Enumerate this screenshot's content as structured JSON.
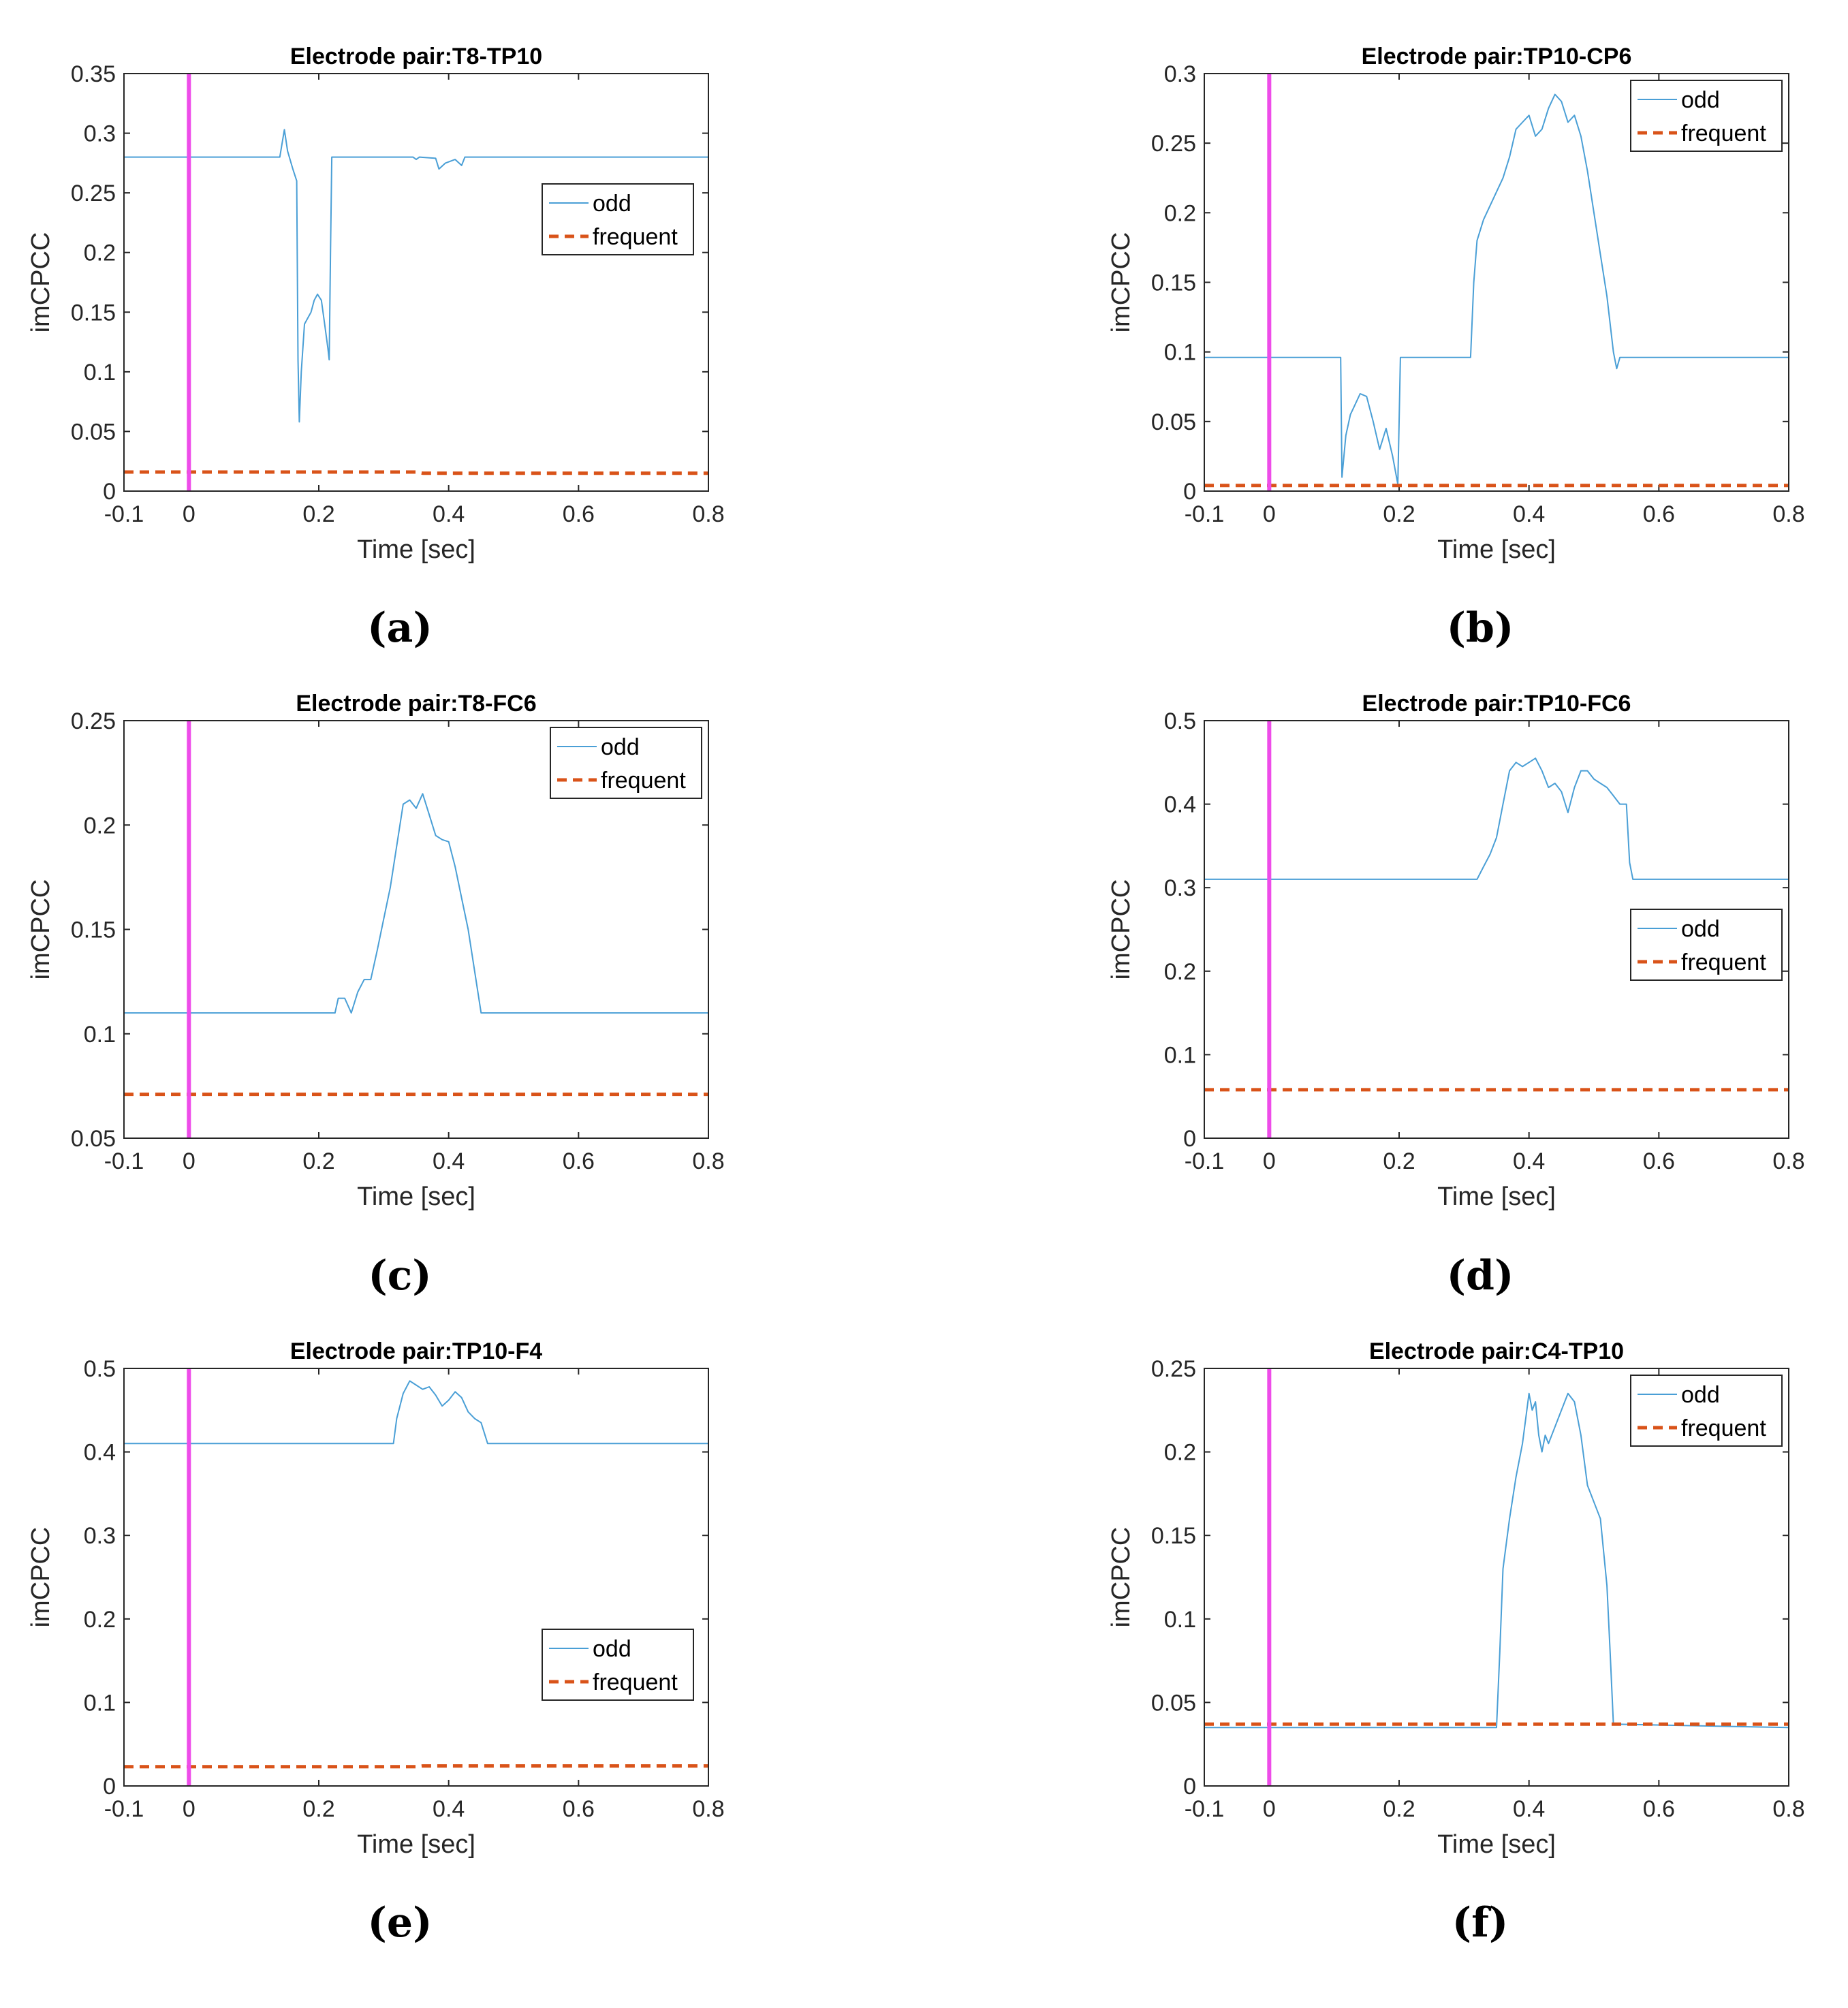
{
  "figure": {
    "colors": {
      "odd": "#4a9fd6",
      "frequent": "#d95319",
      "stimulus": "#ee4ce9",
      "axis": "#262626",
      "grid": "#000000"
    }
  },
  "chart_data": [
    {
      "id": "a",
      "type": "line",
      "title": "Electrode pair:T8-TP10",
      "caption": "(a)",
      "xlabel": "Time [sec]",
      "ylabel": "imCPCC",
      "xlim": [
        -0.1,
        0.8
      ],
      "ylim": [
        0,
        0.35
      ],
      "xticks": [
        -0.1,
        0,
        0.2,
        0.4,
        0.6,
        0.8
      ],
      "xtick_labels": [
        "-0.1",
        "0",
        "0.2",
        "0.4",
        "0.6",
        "0.8"
      ],
      "yticks": [
        0,
        0.05,
        0.1,
        0.15,
        0.2,
        0.25,
        0.3,
        0.35
      ],
      "ytick_labels": [
        "0",
        "0.05",
        "0.1",
        "0.15",
        "0.2",
        "0.25",
        "0.3",
        "0.35"
      ],
      "legend": {
        "entries": [
          "odd",
          "frequent"
        ],
        "placement": "middle-right"
      },
      "stimulus_x": 0,
      "series": [
        {
          "name": "odd",
          "style": "solid",
          "x": [
            -0.1,
            0.14,
            0.143,
            0.147,
            0.152,
            0.16,
            0.166,
            0.168,
            0.17,
            0.173,
            0.178,
            0.183,
            0.188,
            0.193,
            0.198,
            0.204,
            0.209,
            0.214,
            0.216,
            0.218,
            0.22,
            0.3,
            0.345,
            0.35,
            0.355,
            0.38,
            0.385,
            0.395,
            0.41,
            0.42,
            0.425,
            0.43,
            0.8
          ],
          "y": [
            0.28,
            0.28,
            0.29,
            0.303,
            0.285,
            0.27,
            0.26,
            0.11,
            0.058,
            0.1,
            0.14,
            0.145,
            0.15,
            0.16,
            0.165,
            0.16,
            0.14,
            0.12,
            0.11,
            0.2,
            0.28,
            0.28,
            0.28,
            0.278,
            0.28,
            0.279,
            0.27,
            0.275,
            0.278,
            0.273,
            0.28,
            0.28,
            0.28
          ]
        },
        {
          "name": "frequent",
          "style": "dashed",
          "x": [
            -0.1,
            0.35,
            0.36,
            0.8
          ],
          "y": [
            0.016,
            0.016,
            0.015,
            0.015
          ]
        }
      ]
    },
    {
      "id": "b",
      "type": "line",
      "title": "Electrode pair:TP10-CP6",
      "caption": "(b)",
      "xlabel": "Time [sec]",
      "ylabel": "imCPCC",
      "xlim": [
        -0.1,
        0.8
      ],
      "ylim": [
        0,
        0.3
      ],
      "xticks": [
        -0.1,
        0,
        0.2,
        0.4,
        0.6,
        0.8
      ],
      "xtick_labels": [
        "-0.1",
        "0",
        "0.2",
        "0.4",
        "0.6",
        "0.8"
      ],
      "yticks": [
        0,
        0.05,
        0.1,
        0.15,
        0.2,
        0.25,
        0.3
      ],
      "ytick_labels": [
        "0",
        "0.05",
        "0.1",
        "0.15",
        "0.2",
        "0.25",
        "0.3"
      ],
      "legend": {
        "entries": [
          "odd",
          "frequent"
        ],
        "placement": "top-right"
      },
      "stimulus_x": 0,
      "series": [
        {
          "name": "odd",
          "style": "solid",
          "x": [
            -0.1,
            0.11,
            0.112,
            0.118,
            0.125,
            0.13,
            0.14,
            0.15,
            0.16,
            0.17,
            0.18,
            0.19,
            0.198,
            0.2,
            0.202,
            0.31,
            0.315,
            0.32,
            0.33,
            0.345,
            0.36,
            0.37,
            0.38,
            0.39,
            0.4,
            0.41,
            0.42,
            0.43,
            0.44,
            0.45,
            0.46,
            0.47,
            0.48,
            0.49,
            0.5,
            0.51,
            0.52,
            0.53,
            0.535,
            0.54,
            0.8
          ],
          "y": [
            0.096,
            0.096,
            0.01,
            0.04,
            0.055,
            0.06,
            0.07,
            0.068,
            0.05,
            0.03,
            0.045,
            0.025,
            0.005,
            0.05,
            0.096,
            0.096,
            0.15,
            0.18,
            0.195,
            0.21,
            0.225,
            0.24,
            0.26,
            0.265,
            0.27,
            0.255,
            0.26,
            0.275,
            0.285,
            0.28,
            0.265,
            0.27,
            0.255,
            0.23,
            0.2,
            0.17,
            0.14,
            0.1,
            0.088,
            0.096,
            0.096
          ]
        },
        {
          "name": "frequent",
          "style": "dashed",
          "x": [
            -0.1,
            0.8
          ],
          "y": [
            0.004,
            0.004
          ]
        }
      ]
    },
    {
      "id": "c",
      "type": "line",
      "title": "Electrode pair:T8-FC6",
      "caption": "(c)",
      "xlabel": "Time [sec]",
      "ylabel": "imCPCC",
      "xlim": [
        -0.1,
        0.8
      ],
      "ylim": [
        0.05,
        0.25
      ],
      "xticks": [
        -0.1,
        0,
        0.2,
        0.4,
        0.6,
        0.8
      ],
      "xtick_labels": [
        "-0.1",
        "0",
        "0.2",
        "0.4",
        "0.6",
        "0.8"
      ],
      "yticks": [
        0.05,
        0.1,
        0.15,
        0.2,
        0.25
      ],
      "ytick_labels": [
        "0.05",
        "0.1",
        "0.15",
        "0.2",
        "0.25"
      ],
      "legend": {
        "entries": [
          "odd",
          "frequent"
        ],
        "placement": "top-right"
      },
      "stimulus_x": 0,
      "series": [
        {
          "name": "odd",
          "style": "solid",
          "x": [
            -0.1,
            0.225,
            0.23,
            0.24,
            0.25,
            0.26,
            0.27,
            0.28,
            0.29,
            0.3,
            0.31,
            0.32,
            0.33,
            0.34,
            0.35,
            0.36,
            0.37,
            0.38,
            0.39,
            0.4,
            0.41,
            0.42,
            0.43,
            0.44,
            0.45,
            0.46,
            0.8
          ],
          "y": [
            0.11,
            0.11,
            0.117,
            0.117,
            0.11,
            0.12,
            0.126,
            0.126,
            0.14,
            0.155,
            0.17,
            0.19,
            0.21,
            0.212,
            0.208,
            0.215,
            0.205,
            0.195,
            0.193,
            0.192,
            0.18,
            0.165,
            0.15,
            0.13,
            0.11,
            0.11,
            0.11
          ]
        },
        {
          "name": "frequent",
          "style": "dashed",
          "x": [
            -0.1,
            0.8
          ],
          "y": [
            0.071,
            0.071
          ]
        }
      ]
    },
    {
      "id": "d",
      "type": "line",
      "title": "Electrode pair:TP10-FC6",
      "caption": "(d)",
      "xlabel": "Time [sec]",
      "ylabel": "imCPCC",
      "xlim": [
        -0.1,
        0.8
      ],
      "ylim": [
        0,
        0.5
      ],
      "xticks": [
        -0.1,
        0,
        0.2,
        0.4,
        0.6,
        0.8
      ],
      "xtick_labels": [
        "-0.1",
        "0",
        "0.2",
        "0.4",
        "0.6",
        "0.8"
      ],
      "yticks": [
        0,
        0.1,
        0.2,
        0.3,
        0.4,
        0.5
      ],
      "ytick_labels": [
        "0",
        "0.1",
        "0.2",
        "0.3",
        "0.4",
        "0.5"
      ],
      "legend": {
        "entries": [
          "odd",
          "frequent"
        ],
        "placement": "middle-right"
      },
      "stimulus_x": 0,
      "series": [
        {
          "name": "odd",
          "style": "solid",
          "x": [
            -0.1,
            0.32,
            0.33,
            0.34,
            0.35,
            0.36,
            0.37,
            0.38,
            0.39,
            0.4,
            0.41,
            0.42,
            0.43,
            0.44,
            0.45,
            0.46,
            0.47,
            0.48,
            0.49,
            0.5,
            0.51,
            0.52,
            0.53,
            0.54,
            0.55,
            0.555,
            0.56,
            0.8
          ],
          "y": [
            0.31,
            0.31,
            0.325,
            0.34,
            0.36,
            0.4,
            0.44,
            0.45,
            0.445,
            0.45,
            0.455,
            0.44,
            0.42,
            0.425,
            0.415,
            0.39,
            0.42,
            0.44,
            0.44,
            0.43,
            0.425,
            0.42,
            0.41,
            0.4,
            0.4,
            0.33,
            0.31,
            0.31
          ]
        },
        {
          "name": "frequent",
          "style": "dashed",
          "x": [
            -0.1,
            0.8
          ],
          "y": [
            0.058,
            0.058
          ]
        }
      ]
    },
    {
      "id": "e",
      "type": "line",
      "title": "Electrode pair:TP10-F4",
      "caption": "(e)",
      "xlabel": "Time [sec]",
      "ylabel": "imCPCC",
      "xlim": [
        -0.1,
        0.8
      ],
      "ylim": [
        0,
        0.5
      ],
      "xticks": [
        -0.1,
        0,
        0.2,
        0.4,
        0.6,
        0.8
      ],
      "xtick_labels": [
        "-0.1",
        "0",
        "0.2",
        "0.4",
        "0.6",
        "0.8"
      ],
      "yticks": [
        0,
        0.1,
        0.2,
        0.3,
        0.4,
        0.5
      ],
      "ytick_labels": [
        "0",
        "0.1",
        "0.2",
        "0.3",
        "0.4",
        "0.5"
      ],
      "legend": {
        "entries": [
          "odd",
          "frequent"
        ],
        "placement": "middle-right"
      },
      "stimulus_x": 0,
      "series": [
        {
          "name": "odd",
          "style": "solid",
          "x": [
            -0.1,
            0.315,
            0.32,
            0.33,
            0.34,
            0.35,
            0.36,
            0.37,
            0.38,
            0.39,
            0.4,
            0.41,
            0.42,
            0.43,
            0.44,
            0.45,
            0.46,
            0.47,
            0.8
          ],
          "y": [
            0.41,
            0.41,
            0.44,
            0.47,
            0.485,
            0.48,
            0.475,
            0.478,
            0.468,
            0.455,
            0.462,
            0.472,
            0.465,
            0.448,
            0.44,
            0.435,
            0.41,
            0.41,
            0.41
          ]
        },
        {
          "name": "frequent",
          "style": "dashed",
          "x": [
            -0.1,
            0.35,
            0.36,
            0.8
          ],
          "y": [
            0.023,
            0.023,
            0.024,
            0.024
          ]
        }
      ]
    },
    {
      "id": "f",
      "type": "line",
      "title": "Electrode pair:C4-TP10",
      "caption": "(f)",
      "xlabel": "Time [sec]",
      "ylabel": "imCPCC",
      "xlim": [
        -0.1,
        0.8
      ],
      "ylim": [
        0,
        0.25
      ],
      "xticks": [
        -0.1,
        0,
        0.2,
        0.4,
        0.6,
        0.8
      ],
      "xtick_labels": [
        "-0.1",
        "0",
        "0.2",
        "0.4",
        "0.6",
        "0.8"
      ],
      "yticks": [
        0,
        0.05,
        0.1,
        0.15,
        0.2,
        0.25
      ],
      "ytick_labels": [
        "0",
        "0.05",
        "0.1",
        "0.15",
        "0.2",
        "0.25"
      ],
      "legend": {
        "entries": [
          "odd",
          "frequent"
        ],
        "placement": "top-right"
      },
      "stimulus_x": 0,
      "series": [
        {
          "name": "odd",
          "style": "solid",
          "x": [
            -0.1,
            0.35,
            0.355,
            0.36,
            0.37,
            0.38,
            0.39,
            0.4,
            0.405,
            0.41,
            0.415,
            0.42,
            0.425,
            0.43,
            0.44,
            0.45,
            0.46,
            0.47,
            0.48,
            0.49,
            0.5,
            0.51,
            0.52,
            0.525,
            0.53,
            0.8
          ],
          "y": [
            0.035,
            0.035,
            0.08,
            0.13,
            0.16,
            0.185,
            0.205,
            0.235,
            0.225,
            0.23,
            0.21,
            0.2,
            0.21,
            0.205,
            0.215,
            0.225,
            0.235,
            0.23,
            0.21,
            0.18,
            0.17,
            0.16,
            0.12,
            0.08,
            0.037,
            0.035
          ]
        },
        {
          "name": "frequent",
          "style": "dashed",
          "x": [
            -0.1,
            0.8
          ],
          "y": [
            0.037,
            0.037
          ]
        }
      ]
    }
  ]
}
